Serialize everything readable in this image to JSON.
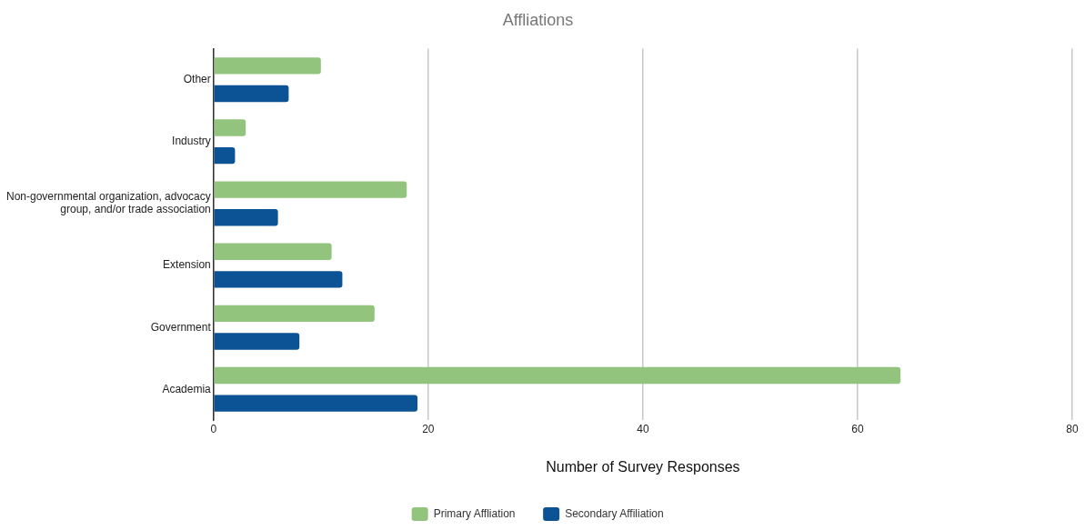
{
  "chart_data": {
    "type": "bar",
    "orientation": "horizontal",
    "title": "Affliations",
    "xlabel": "Number of Survey Responses",
    "categories": [
      "Other",
      "Industry",
      "Non-governmental organization, advocacy group, and/or trade association",
      "Extension",
      "Government",
      "Academia"
    ],
    "series": [
      {
        "name": "Primary Affliation",
        "color": "#93c47d",
        "values": [
          10,
          3,
          18,
          11,
          15,
          64
        ]
      },
      {
        "name": "Secondary Affiliation",
        "color": "#0b5394",
        "values": [
          7,
          2,
          6,
          12,
          8,
          19
        ]
      }
    ],
    "xlim": [
      0,
      80
    ],
    "xticks": [
      0,
      20,
      40,
      60,
      80
    ],
    "grid": "x",
    "legend": "bottom"
  }
}
